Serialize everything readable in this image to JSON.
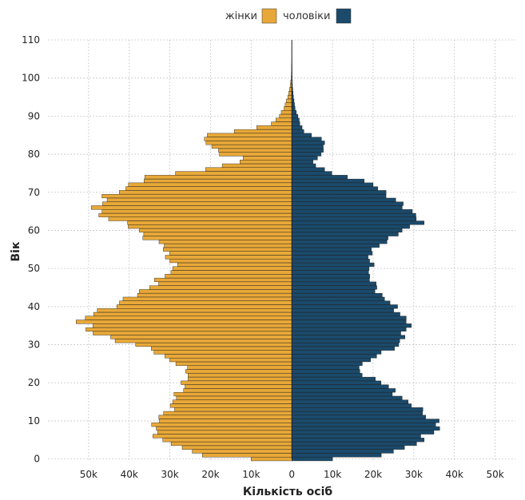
{
  "chart_data": {
    "type": "bar",
    "orientation": "horizontal",
    "layout": "population-pyramid",
    "xlabel": "Кількість осіб",
    "ylabel": "Вік",
    "x_tick_labels": [
      "50k",
      "40k",
      "30k",
      "20k",
      "10k",
      "0",
      "10k",
      "20k",
      "30k",
      "40k",
      "50k"
    ],
    "x_ticks": [
      -50000,
      -40000,
      -30000,
      -20000,
      -10000,
      0,
      10000,
      20000,
      30000,
      40000,
      50000
    ],
    "y_ticks": [
      0,
      10,
      20,
      30,
      40,
      50,
      60,
      70,
      80,
      90,
      100,
      110
    ],
    "xlim": [
      -60000,
      55000
    ],
    "ylim": [
      -0.5,
      110
    ],
    "grid": true,
    "legend_position": "top-center",
    "series": [
      {
        "name": "жінки",
        "color": "#E8A838",
        "side": "left",
        "anchors": [
          [
            0,
            10000
          ],
          [
            1,
            22000
          ],
          [
            3,
            27000
          ],
          [
            5,
            32000
          ],
          [
            8,
            34500
          ],
          [
            10,
            33000
          ],
          [
            12,
            31000
          ],
          [
            15,
            29000
          ],
          [
            18,
            27500
          ],
          [
            20,
            26500
          ],
          [
            22,
            25000
          ],
          [
            25,
            28000
          ],
          [
            28,
            33000
          ],
          [
            30,
            39000
          ],
          [
            32,
            45000
          ],
          [
            34,
            51000
          ],
          [
            36,
            51500
          ],
          [
            38,
            49000
          ],
          [
            40,
            45000
          ],
          [
            42,
            40000
          ],
          [
            44,
            37000
          ],
          [
            46,
            34000
          ],
          [
            48,
            31000
          ],
          [
            50,
            29000
          ],
          [
            53,
            30000
          ],
          [
            56,
            32000
          ],
          [
            60,
            38000
          ],
          [
            63,
            44000
          ],
          [
            65,
            48000
          ],
          [
            66,
            49000
          ],
          [
            68,
            46000
          ],
          [
            70,
            43000
          ],
          [
            72,
            40000
          ],
          [
            74,
            35000
          ],
          [
            75,
            28000
          ],
          [
            76,
            22000
          ],
          [
            77,
            17000
          ],
          [
            78,
            13000
          ],
          [
            79,
            12000
          ],
          [
            80,
            17000
          ],
          [
            82,
            20000
          ],
          [
            84,
            22000
          ],
          [
            85,
            20000
          ],
          [
            86,
            14000
          ],
          [
            87,
            9000
          ],
          [
            88,
            5000
          ],
          [
            90,
            3000
          ],
          [
            92,
            2000
          ],
          [
            95,
            1000
          ],
          [
            98,
            400
          ],
          [
            100,
            150
          ],
          [
            105,
            20
          ],
          [
            110,
            0
          ]
        ]
      },
      {
        "name": "чоловіки",
        "color": "#1B4A6B",
        "side": "right",
        "anchors": [
          [
            0,
            10000
          ],
          [
            1,
            22000
          ],
          [
            3,
            28000
          ],
          [
            5,
            32000
          ],
          [
            8,
            36000
          ],
          [
            10,
            35000
          ],
          [
            12,
            33000
          ],
          [
            15,
            28000
          ],
          [
            18,
            25000
          ],
          [
            20,
            22000
          ],
          [
            22,
            18000
          ],
          [
            24,
            16000
          ],
          [
            26,
            19000
          ],
          [
            28,
            23000
          ],
          [
            30,
            26000
          ],
          [
            33,
            28000
          ],
          [
            36,
            28500
          ],
          [
            38,
            27000
          ],
          [
            40,
            25000
          ],
          [
            43,
            22000
          ],
          [
            46,
            20000
          ],
          [
            48,
            19000
          ],
          [
            50,
            19500
          ],
          [
            53,
            19000
          ],
          [
            56,
            21000
          ],
          [
            59,
            26000
          ],
          [
            62,
            31000
          ],
          [
            64,
            31000
          ],
          [
            66,
            28000
          ],
          [
            68,
            25000
          ],
          [
            70,
            23000
          ],
          [
            72,
            20000
          ],
          [
            74,
            14000
          ],
          [
            75,
            10000
          ],
          [
            76,
            8000
          ],
          [
            77,
            6000
          ],
          [
            78,
            5000
          ],
          [
            80,
            7500
          ],
          [
            83,
            8000
          ],
          [
            84,
            7000
          ],
          [
            86,
            3000
          ],
          [
            88,
            2000
          ],
          [
            90,
            1500
          ],
          [
            92,
            800
          ],
          [
            95,
            400
          ],
          [
            98,
            150
          ],
          [
            100,
            60
          ],
          [
            105,
            10
          ],
          [
            110,
            0
          ]
        ]
      }
    ]
  }
}
